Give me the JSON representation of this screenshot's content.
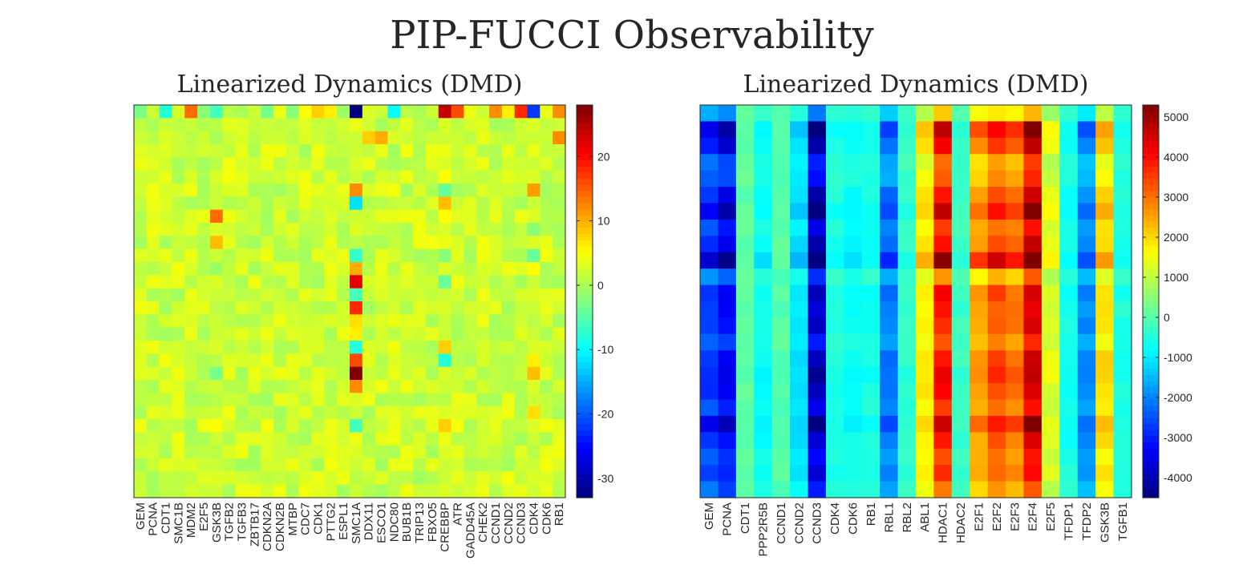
{
  "title": "PIP-FUCCI Observability",
  "chart_data": [
    {
      "type": "heatmap",
      "title": "Linearized Dynamics (DMD)",
      "colormap": "jet",
      "clim": [
        -33,
        28
      ],
      "colorbar_ticks": [
        20,
        10,
        0,
        -10,
        -20,
        -30
      ],
      "x_tick_labels": [
        "GEM",
        "PCNA",
        "CDT1",
        "SMC1B",
        "MDM2",
        "E2F5",
        "GSK3B",
        "TGFB2",
        "TGFB3",
        "ZBTB17",
        "CDKN2A",
        "CDKN2B",
        "MTBP",
        "CDC7",
        "CDK1",
        "PTTG2",
        "ESPL1",
        "SMC1A",
        "DDX11",
        "ESCO1",
        "NDC80",
        "BUB1B",
        "TRIP13",
        "FBXO5",
        "CREBBP",
        "ATR",
        "GADD45A",
        "CHEK2",
        "CCND1",
        "CCND2",
        "CCND3",
        "CDK4",
        "CDK6",
        "RB1"
      ],
      "n_cols": 34,
      "n_rows": 30,
      "base": 2,
      "special_rows": [
        {
          "row": 0,
          "values": [
            -3,
            2,
            -8,
            3,
            14,
            -2,
            -6,
            1,
            0,
            2,
            -3,
            4,
            -2,
            5,
            8,
            6,
            -1,
            -33,
            3,
            2,
            -10,
            1,
            0,
            2,
            24,
            16,
            4,
            2,
            12,
            6,
            18,
            -22,
            4,
            12
          ]
        },
        {
          "row": 2,
          "values": [
            2,
            1,
            3,
            2,
            1,
            2,
            1,
            2,
            3,
            1,
            2,
            2,
            1,
            3,
            2,
            1,
            2,
            2,
            8,
            10,
            3,
            2,
            1,
            2,
            3,
            2,
            1,
            4,
            2,
            1,
            2,
            3,
            2,
            12
          ]
        }
      ],
      "col_values": [
        {
          "col": 17,
          "values": [
            -33,
            4,
            2,
            2,
            3,
            2,
            12,
            -12,
            2,
            3,
            1,
            -7,
            10,
            22,
            -6,
            18,
            7,
            6,
            -8,
            16,
            28,
            12,
            3,
            2,
            -6,
            4,
            3,
            2,
            1,
            2
          ]
        },
        {
          "col": 24,
          "values": [
            24,
            3,
            2,
            4,
            3,
            5,
            -4,
            9,
            5,
            3,
            4,
            -2,
            3,
            -4,
            2,
            3,
            2,
            2,
            8,
            -8,
            3,
            2,
            1,
            3,
            8,
            4,
            3,
            2,
            2,
            3
          ]
        },
        {
          "col": 6,
          "values": [
            -6,
            1,
            0,
            2,
            1,
            3,
            2,
            2,
            14,
            3,
            9,
            2,
            -1,
            3,
            2,
            1,
            2,
            2,
            3,
            1,
            -3,
            2,
            1,
            2,
            5,
            2,
            1,
            2,
            3,
            2
          ]
        },
        {
          "col": 31,
          "values": [
            -22,
            3,
            2,
            4,
            2,
            3,
            11,
            2,
            3,
            -2,
            3,
            -4,
            5,
            2,
            3,
            2,
            1,
            2,
            3,
            6,
            9,
            3,
            2,
            7,
            3,
            2,
            1,
            2,
            3,
            2
          ]
        }
      ]
    },
    {
      "type": "heatmap",
      "title": "Linearized Dynamics (DMD)",
      "colormap": "jet",
      "clim": [
        -4500,
        5300
      ],
      "colorbar_ticks": [
        5000,
        4000,
        3000,
        2000,
        1000,
        0,
        -1000,
        -2000,
        -3000,
        -4000
      ],
      "x_tick_labels": [
        "GEM",
        "PCNA",
        "CDT1",
        "PPP2R5B",
        "CCND1",
        "CCND2",
        "CCND3",
        "CDK4",
        "CDK6",
        "RB1",
        "RBL1",
        "RBL2",
        "ABL1",
        "HDAC1",
        "HDAC2",
        "E2F1",
        "E2F2",
        "E2F3",
        "E2F4",
        "E2F5",
        "TFDP1",
        "TFDP2",
        "GSK3B",
        "TGFB1"
      ],
      "n_cols": 24,
      "n_rows": 24,
      "column_profile": [
        -3000,
        -3600,
        100,
        -800,
        0,
        -1200,
        -4200,
        -600,
        -800,
        -700,
        -2300,
        -400,
        1900,
        4200,
        -300,
        2800,
        3600,
        3200,
        4800,
        1400,
        -700,
        -2100,
        2100,
        -600
      ],
      "row_scale": [
        0.5,
        1.15,
        1.0,
        0.7,
        0.75,
        0.95,
        1.1,
        0.85,
        0.95,
        1.25,
        0.65,
        0.95,
        0.9,
        0.9,
        0.75,
        0.95,
        1.0,
        0.95,
        0.8,
        1.1,
        0.9,
        0.8,
        0.85,
        0.7
      ]
    }
  ]
}
